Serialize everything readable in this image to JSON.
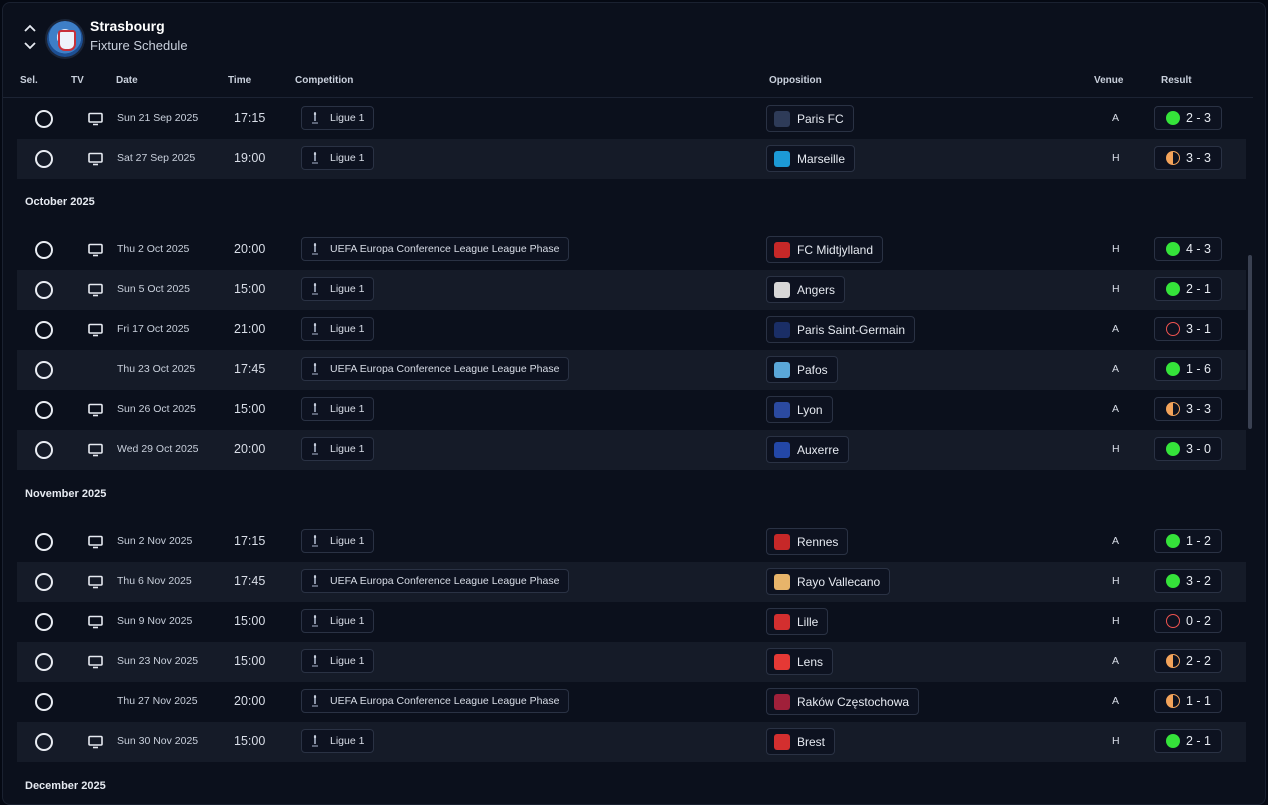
{
  "header": {
    "team": "Strasbourg",
    "subtitle": "Fixture Schedule"
  },
  "columns": {
    "sel": "Sel.",
    "tv": "TV",
    "date": "Date",
    "time": "Time",
    "competition": "Competition",
    "opposition": "Opposition",
    "venue": "Venue",
    "result": "Result"
  },
  "months": [
    "October 2025",
    "November 2025",
    "December 2025"
  ],
  "fixtures": [
    {
      "tv": true,
      "date": "Sun 21 Sep 2025",
      "time": "17:15",
      "competition": "Ligue 1",
      "opponent": "Paris FC",
      "venue": "A",
      "outcome": "win",
      "score": "2 - 3",
      "badge": "#2e3b58"
    },
    {
      "tv": true,
      "date": "Sat 27 Sep 2025",
      "time": "19:00",
      "competition": "Ligue 1",
      "opponent": "Marseille",
      "venue": "H",
      "outcome": "draw",
      "score": "3 - 3",
      "badge": "#1c9ad6"
    },
    {
      "tv": true,
      "date": "Thu 2 Oct 2025",
      "time": "20:00",
      "competition": "UEFA Europa Conference League League Phase",
      "opponent": "FC Midtjylland",
      "venue": "H",
      "outcome": "win",
      "score": "4 - 3",
      "badge": "#c62828"
    },
    {
      "tv": true,
      "date": "Sun 5 Oct 2025",
      "time": "15:00",
      "competition": "Ligue 1",
      "opponent": "Angers",
      "venue": "H",
      "outcome": "win",
      "score": "2 - 1",
      "badge": "#d7d7d7"
    },
    {
      "tv": true,
      "date": "Fri 17 Oct 2025",
      "time": "21:00",
      "competition": "Ligue 1",
      "opponent": "Paris Saint-Germain",
      "venue": "A",
      "outcome": "loss",
      "score": "3 - 1",
      "badge": "#1a2e66"
    },
    {
      "tv": false,
      "date": "Thu 23 Oct 2025",
      "time": "17:45",
      "competition": "UEFA Europa Conference League League Phase",
      "opponent": "Pafos",
      "venue": "A",
      "outcome": "win",
      "score": "1 - 6",
      "badge": "#5aa7d8"
    },
    {
      "tv": true,
      "date": "Sun 26 Oct 2025",
      "time": "15:00",
      "competition": "Ligue 1",
      "opponent": "Lyon",
      "venue": "A",
      "outcome": "draw",
      "score": "3 - 3",
      "badge": "#2b4aa0"
    },
    {
      "tv": true,
      "date": "Wed 29 Oct 2025",
      "time": "20:00",
      "competition": "Ligue 1",
      "opponent": "Auxerre",
      "venue": "H",
      "outcome": "win",
      "score": "3 - 0",
      "badge": "#2347a6"
    },
    {
      "tv": true,
      "date": "Sun 2 Nov 2025",
      "time": "17:15",
      "competition": "Ligue 1",
      "opponent": "Rennes",
      "venue": "A",
      "outcome": "win",
      "score": "1 - 2",
      "badge": "#c62828"
    },
    {
      "tv": true,
      "date": "Thu 6 Nov 2025",
      "time": "17:45",
      "competition": "UEFA Europa Conference League League Phase",
      "opponent": "Rayo Vallecano",
      "venue": "H",
      "outcome": "win",
      "score": "3 - 2",
      "badge": "#e7b46a"
    },
    {
      "tv": true,
      "date": "Sun 9 Nov 2025",
      "time": "15:00",
      "competition": "Ligue 1",
      "opponent": "Lille",
      "venue": "H",
      "outcome": "loss",
      "score": "0 - 2",
      "badge": "#d32f2f"
    },
    {
      "tv": true,
      "date": "Sun 23 Nov 2025",
      "time": "15:00",
      "competition": "Ligue 1",
      "opponent": "Lens",
      "venue": "A",
      "outcome": "draw",
      "score": "2 - 2",
      "badge": "#e53935"
    },
    {
      "tv": false,
      "date": "Thu 27 Nov 2025",
      "time": "20:00",
      "competition": "UEFA Europa Conference League League Phase",
      "opponent": "Raków Częstochowa",
      "venue": "A",
      "outcome": "draw",
      "score": "1 - 1",
      "badge": "#a0203a"
    },
    {
      "tv": true,
      "date": "Sun 30 Nov 2025",
      "time": "15:00",
      "competition": "Ligue 1",
      "opponent": "Brest",
      "venue": "H",
      "outcome": "win",
      "score": "2 - 1",
      "badge": "#d32f2f"
    }
  ]
}
